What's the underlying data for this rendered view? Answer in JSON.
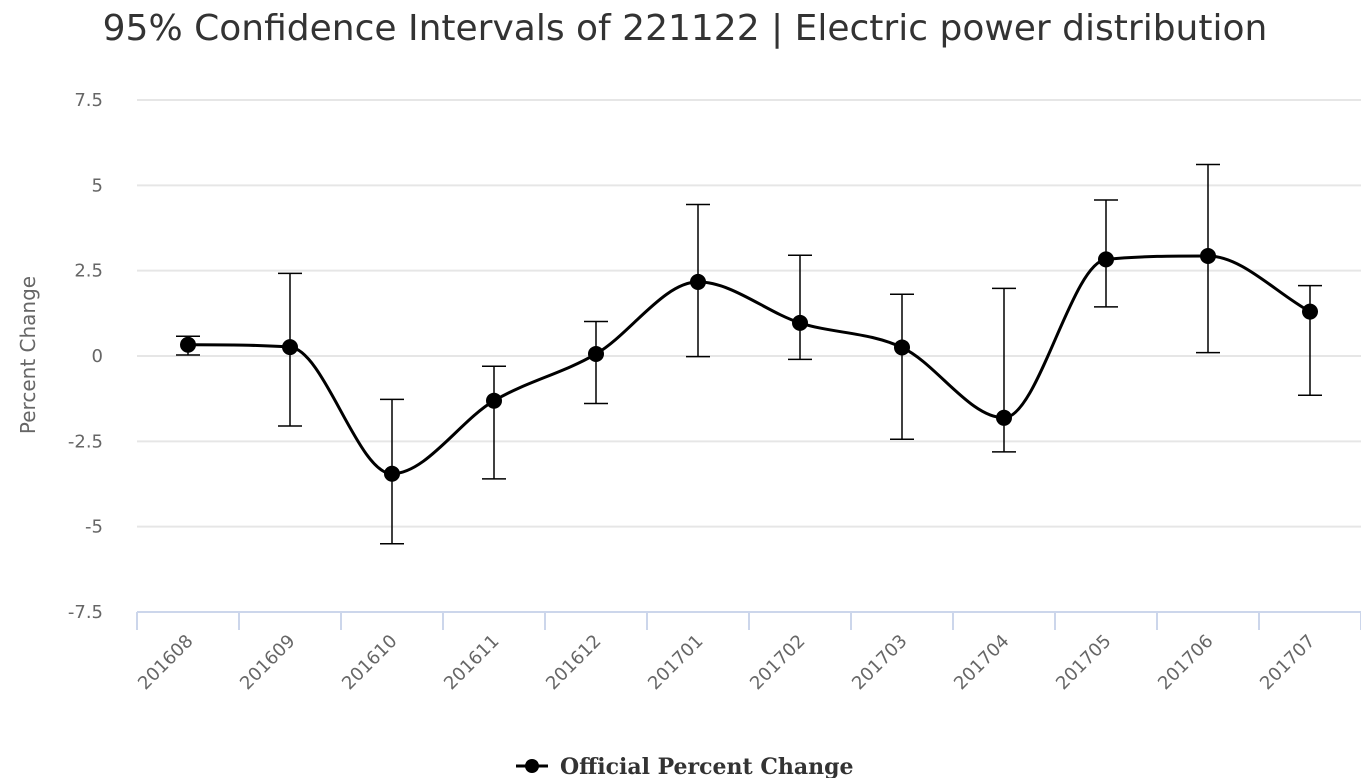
{
  "chart_data": {
    "type": "line",
    "title": "95% Confidence Intervals of 221122 | Electric power distribution",
    "xlabel": "",
    "ylabel": "Percent Change",
    "categories": [
      "201608",
      "201609",
      "201610",
      "201611",
      "201612",
      "201701",
      "201702",
      "201703",
      "201704",
      "201705",
      "201706",
      "201707"
    ],
    "yticks": [
      "7.5",
      "5",
      "2.5",
      "0",
      "-2.5",
      "-5",
      "-7.5"
    ],
    "ylim": [
      -7.5,
      7.5
    ],
    "grid": true,
    "legend_position": "bottom-center",
    "series": [
      {
        "name": "Official Percent Change",
        "color": "#000000",
        "values": [
          0.33,
          0.26,
          -3.45,
          -1.31,
          0.06,
          2.17,
          0.97,
          0.25,
          -1.81,
          2.83,
          2.93,
          1.3
        ],
        "error_low": [
          0.03,
          -2.05,
          -5.5,
          -3.6,
          -1.39,
          -0.02,
          -0.1,
          -2.44,
          -2.81,
          1.44,
          0.1,
          -1.15
        ],
        "error_high": [
          0.58,
          2.42,
          -1.27,
          -0.3,
          1.01,
          4.44,
          2.95,
          1.81,
          1.98,
          4.57,
          5.61,
          2.06
        ]
      }
    ],
    "colors": {
      "grid": "#e6e6e6",
      "axis": "#ccd6eb",
      "line": "#000000",
      "text": "#666666",
      "title": "#333333"
    }
  }
}
